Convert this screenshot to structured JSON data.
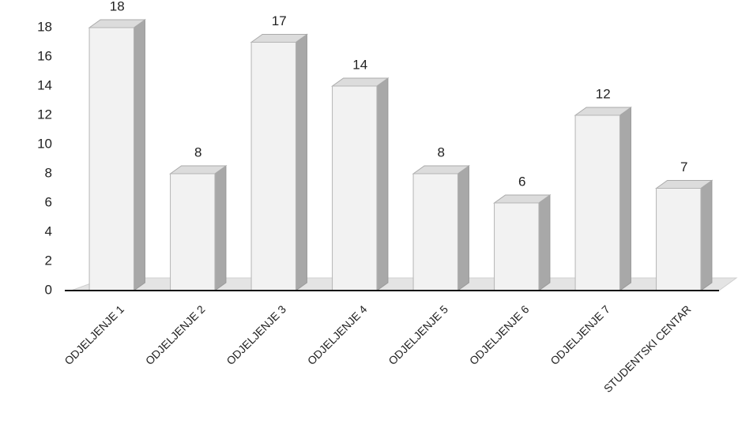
{
  "chart_data": {
    "type": "bar3d",
    "categories": [
      "ODJELJENJE 1",
      "ODJELJENJE 2",
      "ODJELJENJE 3",
      "ODJELJENJE 4",
      "ODJELJENJE 5",
      "ODJELJENJE 6",
      "ODJELJENJE 7",
      "STUDENTSKI CENTAR"
    ],
    "values": [
      18,
      8,
      17,
      14,
      8,
      6,
      12,
      7
    ],
    "color": "#f2f2f2",
    "ylim": [
      0,
      18
    ],
    "yticks": [
      0,
      2,
      4,
      6,
      8,
      10,
      12,
      14,
      16,
      18
    ],
    "grid": false
  }
}
